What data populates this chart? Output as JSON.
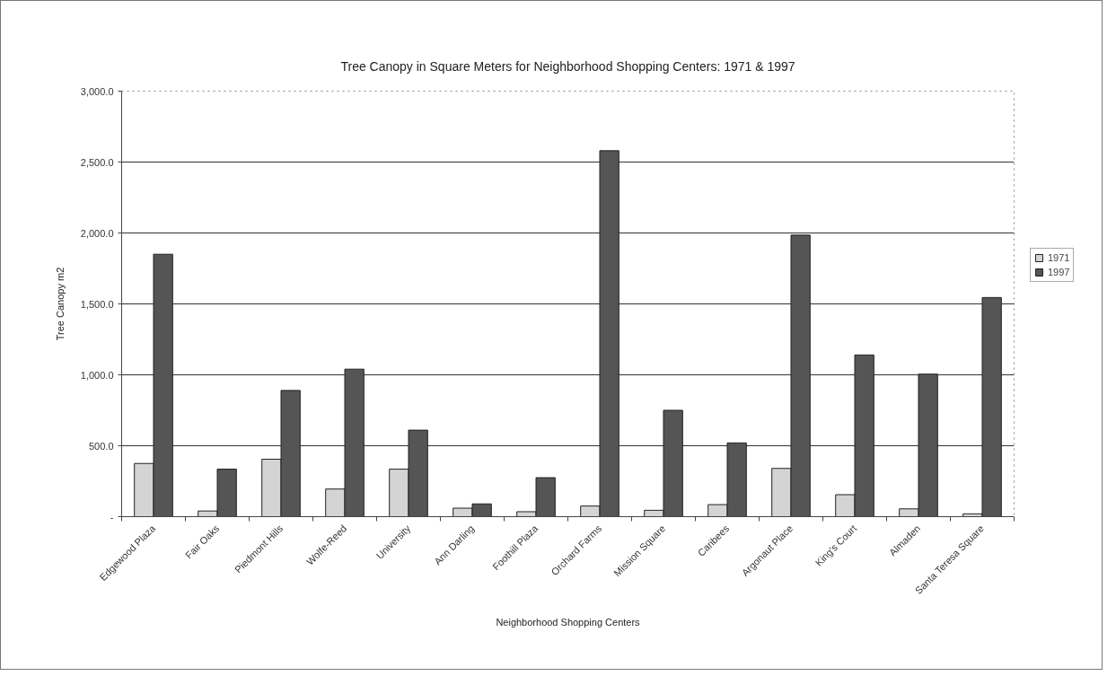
{
  "chart_data": {
    "type": "bar",
    "title": "Tree Canopy in Square Meters for Neighborhood Shopping Centers: 1971 & 1997",
    "xlabel": "Neighborhood Shopping Centers",
    "ylabel": "Tree Canopy m2",
    "categories": [
      "Edgewood Plaza",
      "Fair Oaks",
      "Piedmont Hills",
      "Wolfe-Reed",
      "University",
      "Ann Darling",
      "Foothill Plaza",
      "Orchard Farms",
      "Mission Square",
      "Caribees",
      "Argonaut Place",
      "King's Court",
      "Almaden",
      "Santa Teresa Square"
    ],
    "series": [
      {
        "name": "1971",
        "color": "#d4d4d4",
        "values": [
          375,
          40,
          405,
          195,
          335,
          60,
          35,
          75,
          45,
          85,
          340,
          155,
          55,
          20
        ]
      },
      {
        "name": "1997",
        "color": "#555555",
        "values": [
          1850,
          335,
          890,
          1040,
          610,
          90,
          275,
          2580,
          750,
          520,
          1985,
          1140,
          1005,
          1545
        ]
      }
    ],
    "ylim": [
      0,
      3000
    ],
    "yticks": [
      {
        "value": 0,
        "label": "-"
      },
      {
        "value": 500,
        "label": "500.0"
      },
      {
        "value": 1000,
        "label": "1,000.0"
      },
      {
        "value": 1500,
        "label": "1,500.0"
      },
      {
        "value": 2000,
        "label": "2,000.0"
      },
      {
        "value": 2500,
        "label": "2,500.0"
      },
      {
        "value": 3000,
        "label": "3,000.0"
      }
    ],
    "grid": "y",
    "legend": "right"
  }
}
